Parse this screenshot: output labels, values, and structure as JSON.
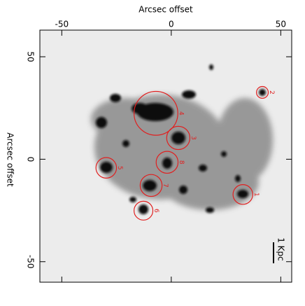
{
  "chart_data": {
    "type": "image",
    "x_label": "Arcsec offset",
    "y_label": "Arcsec offset",
    "xlim": [
      -60,
      55
    ],
    "ylim": [
      -60,
      63
    ],
    "xticks": [
      -50,
      0,
      50
    ],
    "yticks": [
      -50,
      0,
      50
    ],
    "region_color": "#e02020",
    "scale_bar_label": "1 Kpc",
    "regions": [
      {
        "label": "1",
        "x": 32.7,
        "y": -17.2,
        "r": 4.5
      },
      {
        "label": "2",
        "x": 41.6,
        "y": 32.6,
        "r": 2.7
      },
      {
        "label": "3",
        "x": 3.2,
        "y": 10.4,
        "r": 5.3
      },
      {
        "label": "4",
        "x": -7.0,
        "y": 22.4,
        "r": 10
      },
      {
        "label": "5",
        "x": -29.7,
        "y": -4.2,
        "r": 4.7
      },
      {
        "label": "6",
        "x": -12.7,
        "y": -25.1,
        "r": 4.3
      },
      {
        "label": "7",
        "x": -9.2,
        "y": -12.8,
        "r": 5
      },
      {
        "label": "8",
        "x": -1.9,
        "y": -1.5,
        "r": 5
      }
    ]
  }
}
